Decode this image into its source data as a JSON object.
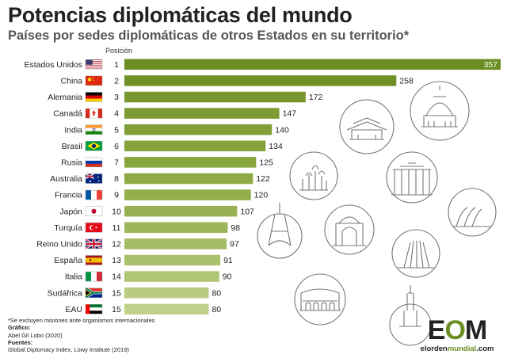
{
  "title": "Potencias diplomáticas del mundo",
  "subtitle": "Países por sedes diplomáticas de otros Estados en su territorio*",
  "position_header": "Posición",
  "chart_data": {
    "type": "bar",
    "orientation": "horizontal",
    "categories": [
      "Estados Unidos",
      "China",
      "Alemania",
      "Canadá",
      "India",
      "Brasil",
      "Rusia",
      "Australia",
      "Francia",
      "Japón",
      "Turquía",
      "Reino Unido",
      "España",
      "Italia",
      "Sudáfrica",
      "EAU"
    ],
    "positions": [
      "1",
      "2",
      "3",
      "4",
      "5",
      "6",
      "7",
      "8",
      "9",
      "10",
      "11",
      "12",
      "13",
      "14",
      "15",
      "15"
    ],
    "values": [
      357,
      258,
      172,
      147,
      140,
      134,
      125,
      122,
      120,
      107,
      98,
      97,
      91,
      90,
      80,
      80
    ],
    "xlim": [
      0,
      357
    ],
    "grid": false,
    "colors": [
      "#6b8e23",
      "#6f9127",
      "#78982f",
      "#7c9b33",
      "#80a037",
      "#84a33b",
      "#88a63f",
      "#8daa45",
      "#92ae4b",
      "#98b253",
      "#9eb65b",
      "#a4bb63",
      "#aac06c",
      "#b0c575",
      "#b8cb80",
      "#bfd08a"
    ]
  },
  "flags": [
    "flag-usa-icon",
    "flag-china-icon",
    "flag-germany-icon",
    "flag-canada-icon",
    "flag-india-icon",
    "flag-brazil-icon",
    "flag-russia-icon",
    "flag-australia-icon",
    "flag-france-icon",
    "flag-japan-icon",
    "flag-turkey-icon",
    "flag-uk-icon",
    "flag-spain-icon",
    "flag-italy-icon",
    "flag-south-africa-icon",
    "flag-uae-icon"
  ],
  "footer": {
    "note": "*Se excluyen misiones ante organismos internacionales",
    "grafico_label": "Gráfico:",
    "grafico_value": "Abel Gil Lobo (2020)",
    "fuentes_label": "Fuentes:",
    "fuentes_value": "Global Diplomacy Index, Lowy Institute (2019)"
  },
  "logo": {
    "e": "E",
    "o": "O",
    "m": "M",
    "url_a": "elorden",
    "url_b": "mundial",
    "url_c": ".com"
  }
}
